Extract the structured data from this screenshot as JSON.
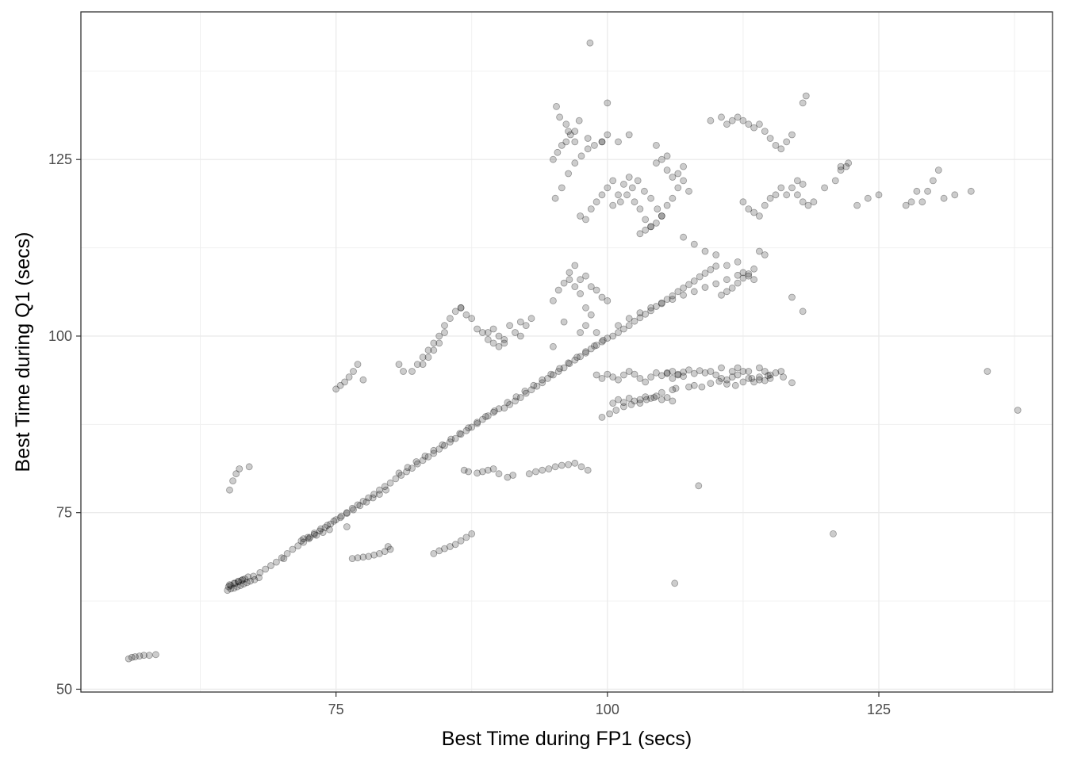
{
  "chart_data": {
    "type": "scatter",
    "title": "",
    "xlabel": "Best Time during FP1 (secs)",
    "ylabel": "Best Time during Q1 (secs)",
    "xlim": [
      51.5,
      141.0
    ],
    "ylim": [
      49.6,
      145.9
    ],
    "x_ticks": [
      75,
      100,
      125
    ],
    "y_ticks": [
      50,
      75,
      100,
      125
    ],
    "x_tick_labels": [
      "75",
      "100",
      "125"
    ],
    "y_tick_labels": [
      "50",
      "75",
      "100",
      "125"
    ],
    "grid": true,
    "legend": "none",
    "point_color": "#000000",
    "point_alpha": 0.2,
    "series": [
      {
        "x": [
          55.9,
          56.2,
          56.5,
          56.9,
          57.3,
          57.8,
          58.4,
          65.0,
          65.3,
          65.6,
          65.9,
          66.2,
          66.5,
          66.8,
          67.1,
          67.5,
          67.9,
          65.1,
          65.3,
          65.7,
          66.0,
          66.3,
          66.6,
          66.9,
          65.2,
          65.6,
          66.0,
          66.4,
          67.4,
          68.0,
          68.5,
          69.0,
          69.5,
          70.0,
          70.5,
          71.0,
          71.5,
          72.0,
          72.5,
          73.0,
          73.5,
          74.0,
          74.5,
          75.0,
          75.5,
          76.0,
          76.5,
          77.0,
          77.5,
          78.0,
          78.5,
          79.0,
          79.5,
          80.0,
          71.8,
          72.4,
          73.0,
          73.6,
          74.2,
          74.8,
          75.4,
          76.0,
          76.6,
          77.2,
          77.8,
          78.4,
          79.0,
          79.6,
          80.5,
          81.0,
          81.5,
          82.0,
          82.5,
          83.0,
          83.5,
          84.0,
          84.5,
          85.0,
          85.5,
          86.0,
          86.5,
          87.0,
          87.5,
          88.0,
          88.5,
          89.0,
          89.5,
          90.0,
          80.8,
          81.6,
          82.4,
          83.2,
          84.0,
          84.8,
          85.6,
          86.4,
          87.2,
          88.0,
          88.8,
          89.6,
          90.5,
          91.0,
          91.5,
          92.0,
          92.5,
          93.0,
          93.5,
          94.0,
          94.5,
          95.0,
          95.5,
          96.0,
          96.5,
          97.0,
          97.5,
          98.0,
          98.5,
          99.0,
          99.5,
          100.0,
          90.8,
          91.6,
          92.4,
          93.2,
          94.0,
          94.8,
          95.6,
          96.4,
          97.2,
          98.0,
          98.8,
          99.6,
          100.5,
          101.0,
          101.5,
          102.0,
          102.5,
          103.0,
          103.5,
          104.0,
          104.5,
          105.0,
          105.5,
          106.0,
          106.5,
          107.0,
          107.5,
          108.0,
          108.5,
          109.0,
          109.5,
          110.0,
          110.5,
          111.0,
          111.5,
          112.0,
          112.5,
          113.0,
          113.5,
          101.0,
          102.0,
          103.0,
          104.0,
          105.0,
          106.0,
          107.0,
          108.0,
          109.0,
          110.0,
          111.0,
          112.0,
          70.2,
          72.0,
          72.6,
          73.2,
          73.8,
          74.4,
          76.0,
          65.2,
          65.5,
          65.8,
          66.1,
          67.0,
          75.0,
          75.4,
          75.8,
          76.2,
          76.6,
          77.0,
          77.5,
          76.5,
          77.0,
          77.5,
          78.0,
          78.5,
          79.0,
          79.5,
          79.8,
          80.0,
          84.0,
          84.5,
          85.0,
          85.5,
          86.0,
          86.5,
          87.0,
          87.5,
          82.0,
          82.5,
          83.0,
          83.5,
          84.0,
          84.5,
          85.0,
          85.5,
          86.0,
          86.5,
          83.0,
          83.5,
          84.0,
          84.5,
          85.0,
          80.8,
          81.2,
          86.8,
          87.2,
          88.0,
          88.5,
          89.0,
          89.5,
          90.0,
          90.8,
          91.3,
          92.8,
          93.4,
          94.0,
          94.6,
          95.2,
          95.8,
          96.4,
          97.0,
          97.6,
          98.2,
          86.5,
          87.0,
          87.5,
          88.0,
          88.5,
          89.0,
          89.5,
          90.0,
          90.5,
          89.0,
          89.5,
          90.0,
          90.5,
          91.0,
          91.5,
          92.0,
          92.5,
          93.0,
          95.0,
          95.5,
          96.0,
          96.5,
          97.0,
          97.5,
          98.0,
          98.5,
          96.5,
          97.0,
          97.5,
          98.0,
          98.5,
          99.0,
          99.5,
          100.0,
          99.0,
          99.5,
          100.0,
          100.5,
          101.0,
          101.5,
          102.0,
          102.5,
          103.0,
          103.5,
          104.0,
          104.5,
          105.0,
          105.5,
          106.0,
          106.5,
          107.0,
          100.5,
          101.0,
          101.5,
          102.0,
          102.5,
          103.0,
          103.5,
          104.0,
          104.5,
          105.0,
          105.5,
          106.0,
          99.5,
          100.2,
          100.8,
          101.5,
          102.2,
          103.0,
          103.6,
          104.3,
          105.0,
          106.0,
          106.3,
          107.5,
          105.5,
          106.0,
          106.5,
          107.0,
          107.5,
          108.0,
          108.5,
          109.0,
          109.5,
          110.0,
          110.5,
          111.0,
          111.5,
          112.0,
          112.5,
          113.0,
          113.5,
          114.0,
          114.5,
          115.0,
          108.0,
          108.7,
          109.5,
          110.3,
          111.0,
          111.8,
          112.5,
          113.3,
          114.0,
          114.8,
          115.5,
          116.2,
          117.0,
          100.5,
          101.2,
          101.8,
          102.3,
          102.8,
          103.4,
          104.0,
          104.6,
          105.0,
          97.5,
          98.0,
          98.5,
          99.0,
          99.5,
          100.0,
          100.5,
          95.2,
          95.8,
          96.4,
          97.0,
          97.6,
          98.2,
          98.8,
          99.5,
          95.0,
          95.4,
          95.8,
          96.2,
          96.6,
          97.0,
          96.2,
          95.6,
          97.4,
          98.2,
          99.5,
          100.0,
          101.0,
          101.5,
          102.0,
          102.5,
          103.0,
          103.5,
          104.0,
          104.5,
          105.0,
          105.5,
          106.0,
          106.5,
          107.0,
          107.5,
          104.5,
          105.0,
          105.5,
          106.0,
          106.5,
          107.0,
          103.0,
          103.5,
          104.0,
          109.5,
          110.5,
          111.0,
          111.5,
          112.0,
          112.5,
          113.0,
          113.5,
          114.0,
          114.5,
          115.0,
          115.5,
          116.0,
          116.5,
          117.0,
          117.5,
          118.0,
          112.5,
          113.0,
          113.5,
          114.0,
          114.5,
          115.0,
          115.5,
          116.0,
          116.5,
          117.0,
          117.5,
          118.0,
          118.5,
          119.0,
          120.0,
          121.0,
          121.5,
          122.0,
          123.0,
          124.0,
          125.0,
          127.5,
          128.0,
          128.5,
          129.0,
          129.5,
          130.0,
          130.5,
          131.0,
          132.0,
          133.5,
          98.4,
          95.3,
          96.4,
          97.0,
          100.0,
          101.0,
          102.0,
          104.5,
          105.5,
          107.0,
          108.0,
          109.0,
          110.0,
          111.0,
          112.0,
          112.5,
          113.0,
          113.5,
          114.0,
          114.5,
          118.3,
          118.0,
          121.5,
          122.2,
          92.0,
          95.0,
          96.0,
          97.5,
          98.0,
          99.0,
          110.5,
          111.5,
          112.0,
          113.0,
          114.0,
          114.5,
          115.0,
          116.0,
          135.0,
          137.8,
          120.8,
          106.2,
          108.4,
          117.0,
          118.0
        ],
        "y": [
          54.3,
          54.5,
          54.6,
          54.7,
          54.8,
          54.8,
          54.9,
          64.0,
          64.2,
          64.3,
          64.5,
          64.7,
          64.9,
          65.1,
          65.3,
          65.5,
          65.8,
          64.5,
          64.7,
          65.0,
          65.2,
          65.4,
          65.6,
          65.9,
          64.8,
          65.0,
          65.3,
          65.5,
          66.0,
          66.5,
          67.0,
          67.5,
          68.0,
          68.6,
          69.2,
          69.8,
          70.3,
          70.8,
          71.3,
          71.9,
          72.4,
          72.9,
          73.4,
          74.0,
          74.5,
          75.0,
          75.6,
          76.1,
          76.6,
          77.1,
          77.6,
          78.2,
          78.7,
          79.2,
          71.0,
          71.5,
          72.1,
          72.7,
          73.2,
          73.8,
          74.3,
          74.9,
          75.4,
          76.0,
          76.5,
          77.1,
          77.6,
          78.2,
          79.8,
          80.3,
          80.8,
          81.3,
          81.9,
          82.4,
          82.9,
          83.4,
          84.0,
          84.5,
          85.0,
          85.5,
          86.1,
          86.6,
          87.1,
          87.6,
          88.2,
          88.7,
          89.2,
          89.7,
          80.6,
          81.4,
          82.2,
          83.0,
          83.8,
          84.6,
          85.4,
          86.2,
          87.0,
          87.8,
          88.6,
          89.4,
          89.8,
          90.3,
          90.8,
          91.3,
          91.9,
          92.4,
          92.9,
          93.4,
          94.0,
          94.5,
          95.0,
          95.5,
          96.1,
          96.6,
          97.1,
          97.6,
          98.2,
          98.7,
          99.2,
          99.7,
          90.6,
          91.4,
          92.2,
          93.0,
          93.8,
          94.6,
          95.4,
          96.2,
          97.0,
          97.8,
          98.6,
          99.4,
          100.0,
          100.5,
          101.0,
          101.5,
          102.1,
          102.6,
          103.1,
          103.6,
          104.2,
          104.7,
          105.2,
          105.7,
          106.3,
          106.8,
          107.3,
          107.8,
          108.4,
          108.9,
          109.4,
          109.9,
          105.8,
          106.3,
          106.8,
          107.5,
          108.2,
          108.8,
          109.5,
          101.5,
          102.5,
          103.3,
          104.0,
          104.6,
          105.2,
          105.8,
          106.3,
          106.9,
          107.4,
          108.0,
          108.6,
          68.5,
          71.3,
          71.5,
          71.8,
          72.2,
          72.6,
          73.0,
          78.2,
          79.5,
          80.5,
          81.2,
          81.5,
          92.5,
          93.0,
          93.5,
          94.2,
          95.0,
          96.0,
          93.8,
          68.5,
          68.6,
          68.7,
          68.8,
          69.0,
          69.2,
          69.5,
          70.2,
          69.8,
          69.2,
          69.6,
          69.9,
          70.2,
          70.5,
          71.0,
          71.5,
          72.0,
          95.0,
          96.0,
          97.0,
          98.0,
          99.0,
          100.0,
          101.5,
          102.5,
          103.5,
          104.0,
          96.0,
          97.0,
          98.0,
          99.0,
          100.5,
          96.0,
          95.0,
          81.0,
          80.8,
          80.6,
          80.8,
          81.0,
          81.2,
          80.5,
          80.0,
          80.3,
          80.5,
          80.8,
          81.0,
          81.2,
          81.5,
          81.7,
          81.8,
          82.0,
          81.5,
          81.0,
          104.0,
          103.0,
          102.5,
          101.0,
          100.5,
          99.5,
          99.0,
          98.5,
          99.0,
          100.5,
          101.0,
          100.0,
          99.5,
          101.5,
          100.5,
          102.0,
          101.5,
          102.5,
          105.0,
          106.5,
          107.5,
          108.0,
          107.0,
          106.0,
          104.0,
          103.0,
          109.0,
          110.0,
          108.0,
          108.5,
          107.0,
          106.5,
          105.5,
          105.0,
          94.5,
          94.0,
          94.6,
          94.2,
          93.8,
          94.5,
          95.0,
          94.6,
          94.0,
          93.5,
          94.2,
          94.8,
          94.4,
          94.7,
          94.0,
          94.5,
          94.3,
          90.5,
          91.0,
          90.6,
          91.2,
          90.8,
          91.0,
          91.4,
          91.2,
          91.5,
          91.0,
          91.3,
          90.8,
          88.5,
          89.0,
          89.5,
          90.0,
          90.3,
          90.5,
          91.0,
          91.3,
          92.0,
          92.4,
          92.6,
          92.8,
          94.8,
          95.0,
          94.6,
          94.9,
          95.2,
          94.7,
          95.1,
          94.8,
          95.0,
          94.5,
          94.0,
          93.8,
          94.2,
          94.5,
          95.0,
          94.0,
          93.5,
          94.2,
          93.7,
          94.0,
          93.0,
          92.8,
          93.3,
          93.6,
          93.2,
          93.0,
          93.5,
          94.0,
          93.8,
          94.4,
          94.8,
          94.2,
          93.4,
          118.5,
          119.0,
          120.0,
          121.0,
          122.0,
          120.5,
          119.5,
          118.0,
          117.0,
          117.0,
          116.5,
          118.0,
          119.0,
          120.0,
          121.0,
          122.0,
          119.5,
          121.0,
          123.0,
          124.5,
          125.5,
          126.5,
          127.0,
          127.5,
          125.0,
          126.0,
          127.0,
          127.5,
          128.5,
          129.0,
          130.0,
          131.0,
          130.5,
          128.0,
          127.5,
          128.5,
          120.0,
          121.5,
          122.5,
          119.0,
          118.0,
          116.5,
          115.5,
          116.0,
          117.0,
          118.5,
          119.5,
          121.0,
          122.0,
          120.5,
          124.5,
          125.0,
          123.5,
          122.5,
          123.0,
          124.0,
          114.5,
          115.0,
          115.5,
          130.5,
          131.0,
          130.0,
          130.5,
          131.0,
          130.5,
          130.0,
          129.5,
          130.0,
          129.0,
          128.0,
          127.0,
          126.5,
          127.5,
          128.5,
          120.0,
          119.0,
          119.0,
          118.0,
          117.5,
          117.0,
          118.5,
          119.5,
          120.0,
          121.0,
          120.0,
          121.0,
          122.0,
          121.5,
          118.5,
          119.0,
          121.0,
          122.0,
          123.5,
          124.0,
          118.5,
          119.5,
          120.0,
          118.5,
          119.0,
          120.5,
          119.0,
          120.5,
          122.0,
          123.5,
          119.5,
          120.0,
          120.5,
          141.5,
          132.5,
          129.0,
          127.5,
          133.0,
          127.5,
          128.5,
          127.0,
          125.5,
          114.0,
          113.0,
          112.0,
          111.5,
          110.0,
          110.5,
          109.0,
          108.5,
          108.0,
          112.0,
          111.5,
          134.0,
          133.0,
          124.0,
          124.5,
          100.0,
          98.5,
          102.0,
          100.5,
          101.5,
          100.5,
          95.5,
          95.0,
          95.5,
          95.0,
          95.5,
          95.0,
          94.5,
          95.0,
          95.0,
          89.5,
          72.0,
          65.0,
          78.8,
          105.5,
          103.5
        ]
      }
    ]
  }
}
